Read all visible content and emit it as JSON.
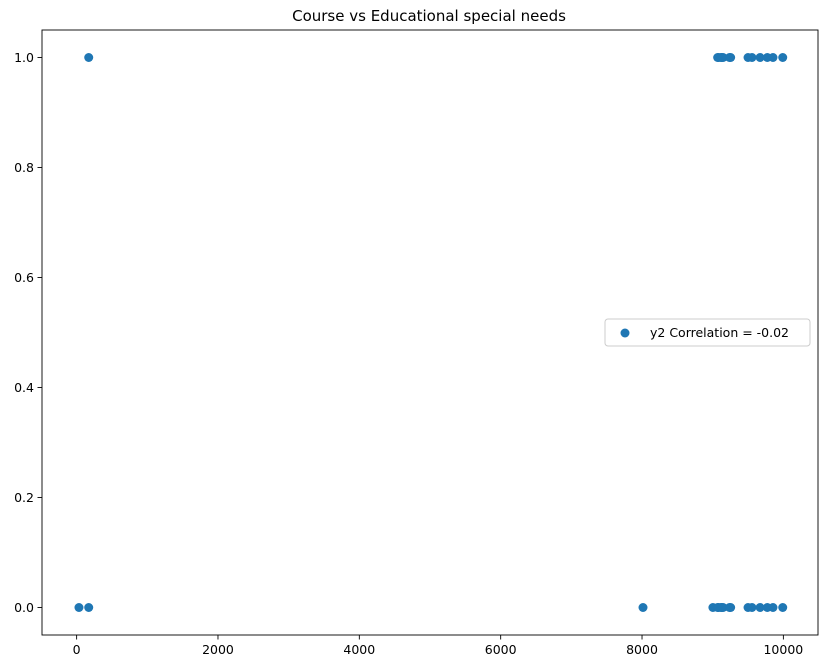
{
  "chart_data": {
    "type": "scatter",
    "title": "Course vs Educational special needs",
    "xlabel": "",
    "ylabel": "",
    "xlim": [
      -490,
      10490
    ],
    "ylim": [
      -0.05,
      1.05
    ],
    "xticks": [
      0,
      2000,
      4000,
      6000,
      8000,
      10000
    ],
    "xtick_labels": [
      "0",
      "2000",
      "4000",
      "6000",
      "8000",
      "10000"
    ],
    "yticks": [
      0.0,
      0.2,
      0.4,
      0.6,
      0.8,
      1.0
    ],
    "ytick_labels": [
      "0.0",
      "0.2",
      "0.4",
      "0.6",
      "0.8",
      "1.0"
    ],
    "grid": false,
    "legend_position": "center-right",
    "series": [
      {
        "name": "y2 Correlation = -0.02",
        "color": "#1f77b4",
        "points": [
          {
            "x": 33,
            "y": 0
          },
          {
            "x": 171,
            "y": 0
          },
          {
            "x": 8014,
            "y": 0
          },
          {
            "x": 9003,
            "y": 0
          },
          {
            "x": 9070,
            "y": 0
          },
          {
            "x": 9085,
            "y": 0
          },
          {
            "x": 9119,
            "y": 0
          },
          {
            "x": 9130,
            "y": 0
          },
          {
            "x": 9147,
            "y": 0
          },
          {
            "x": 9238,
            "y": 0
          },
          {
            "x": 9254,
            "y": 0
          },
          {
            "x": 9500,
            "y": 0
          },
          {
            "x": 9556,
            "y": 0
          },
          {
            "x": 9670,
            "y": 0
          },
          {
            "x": 9773,
            "y": 0
          },
          {
            "x": 9853,
            "y": 0
          },
          {
            "x": 9991,
            "y": 0
          },
          {
            "x": 171,
            "y": 1
          },
          {
            "x": 9070,
            "y": 1
          },
          {
            "x": 9085,
            "y": 1
          },
          {
            "x": 9119,
            "y": 1
          },
          {
            "x": 9130,
            "y": 1
          },
          {
            "x": 9147,
            "y": 1
          },
          {
            "x": 9238,
            "y": 1
          },
          {
            "x": 9254,
            "y": 1
          },
          {
            "x": 9500,
            "y": 1
          },
          {
            "x": 9556,
            "y": 1
          },
          {
            "x": 9670,
            "y": 1
          },
          {
            "x": 9773,
            "y": 1
          },
          {
            "x": 9853,
            "y": 1
          },
          {
            "x": 9991,
            "y": 1
          }
        ]
      }
    ]
  }
}
